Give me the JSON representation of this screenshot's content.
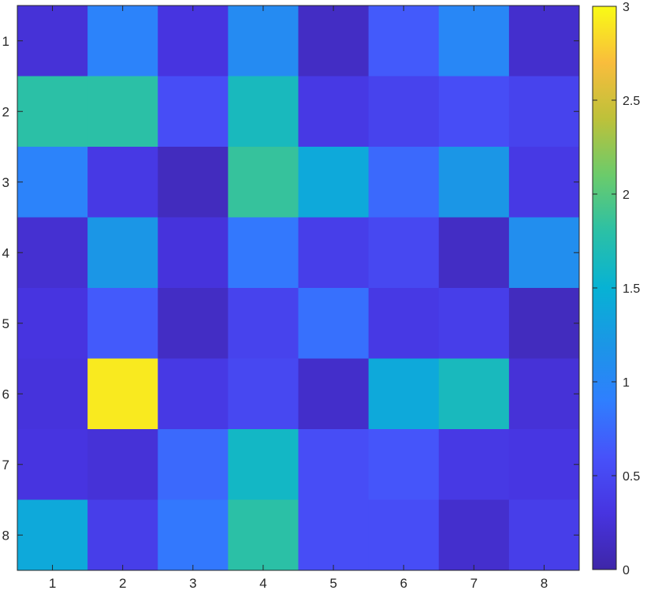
{
  "chart_data": {
    "type": "heatmap",
    "title": "",
    "xlabel": "",
    "ylabel": "",
    "x_categories": [
      "1",
      "2",
      "3",
      "4",
      "5",
      "6",
      "7",
      "8"
    ],
    "y_categories": [
      "1",
      "2",
      "3",
      "4",
      "5",
      "6",
      "7",
      "8"
    ],
    "values": [
      [
        0.25,
        0.95,
        0.3,
        1.05,
        0.15,
        0.65,
        1.0,
        0.2
      ],
      [
        1.8,
        1.8,
        0.55,
        1.65,
        0.35,
        0.45,
        0.55,
        0.45
      ],
      [
        0.95,
        0.35,
        0.12,
        1.85,
        1.4,
        0.75,
        1.2,
        0.35
      ],
      [
        0.22,
        1.2,
        0.28,
        0.85,
        0.4,
        0.5,
        0.15,
        1.1
      ],
      [
        0.3,
        0.65,
        0.15,
        0.45,
        0.8,
        0.35,
        0.4,
        0.12
      ],
      [
        0.28,
        2.92,
        0.35,
        0.5,
        0.18,
        1.4,
        1.65,
        0.25
      ],
      [
        0.3,
        0.25,
        0.75,
        1.6,
        0.55,
        0.62,
        0.35,
        0.32
      ],
      [
        1.4,
        0.4,
        0.85,
        1.8,
        0.55,
        0.55,
        0.2,
        0.4
      ]
    ],
    "colorbar": {
      "min": 0,
      "max": 3,
      "ticks": [
        0,
        0.5,
        1,
        1.5,
        2,
        2.5,
        3
      ],
      "tick_labels": [
        "0",
        "0.5",
        "1",
        "1.5",
        "2",
        "2.5",
        "3"
      ],
      "colormap": "parula",
      "position": "right"
    },
    "grid": false
  }
}
